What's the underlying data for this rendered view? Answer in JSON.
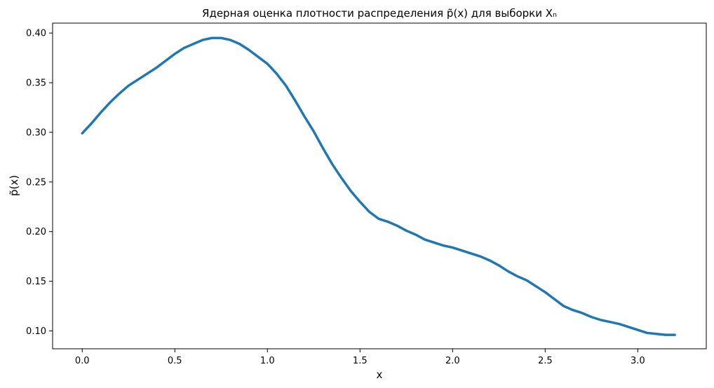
{
  "chart_data": {
    "type": "line",
    "title": "Ядерная оценка плотности распределения p̃(x) для выборки Xₙ",
    "xlabel": "x",
    "ylabel": "p̃(x)",
    "xlim": [
      -0.16,
      3.37
    ],
    "ylim": [
      0.082,
      0.41
    ],
    "xticks": [
      0.0,
      0.5,
      1.0,
      1.5,
      2.0,
      2.5,
      3.0
    ],
    "xtick_labels": [
      "0.0",
      "0.5",
      "1.0",
      "1.5",
      "2.0",
      "2.5",
      "3.0"
    ],
    "yticks": [
      0.1,
      0.15,
      0.2,
      0.25,
      0.3,
      0.35,
      0.4
    ],
    "ytick_labels": [
      "0.10",
      "0.15",
      "0.20",
      "0.25",
      "0.30",
      "0.35",
      "0.40"
    ],
    "grid": false,
    "line_color": "#1f77b4",
    "series": [
      {
        "x": [
          0.0,
          0.05,
          0.1,
          0.15,
          0.2,
          0.25,
          0.3,
          0.35,
          0.4,
          0.45,
          0.5,
          0.55,
          0.6,
          0.65,
          0.7,
          0.75,
          0.8,
          0.85,
          0.9,
          0.95,
          1.0,
          1.05,
          1.1,
          1.15,
          1.2,
          1.25,
          1.3,
          1.35,
          1.4,
          1.45,
          1.5,
          1.55,
          1.6,
          1.65,
          1.7,
          1.75,
          1.8,
          1.85,
          1.9,
          1.95,
          2.0,
          2.05,
          2.1,
          2.15,
          2.2,
          2.25,
          2.3,
          2.35,
          2.4,
          2.45,
          2.5,
          2.55,
          2.6,
          2.65,
          2.7,
          2.75,
          2.8,
          2.85,
          2.9,
          2.95,
          3.0,
          3.05,
          3.1,
          3.15,
          3.2
        ],
        "y": [
          0.299,
          0.309,
          0.32,
          0.33,
          0.339,
          0.347,
          0.353,
          0.359,
          0.365,
          0.372,
          0.379,
          0.385,
          0.389,
          0.393,
          0.395,
          0.395,
          0.393,
          0.389,
          0.383,
          0.376,
          0.369,
          0.359,
          0.347,
          0.332,
          0.316,
          0.301,
          0.284,
          0.268,
          0.254,
          0.241,
          0.23,
          0.22,
          0.213,
          0.21,
          0.206,
          0.201,
          0.197,
          0.192,
          0.189,
          0.186,
          0.184,
          0.181,
          0.178,
          0.175,
          0.171,
          0.166,
          0.16,
          0.155,
          0.151,
          0.145,
          0.139,
          0.132,
          0.125,
          0.121,
          0.118,
          0.114,
          0.111,
          0.109,
          0.107,
          0.104,
          0.101,
          0.098,
          0.097,
          0.096,
          0.096
        ]
      }
    ]
  }
}
